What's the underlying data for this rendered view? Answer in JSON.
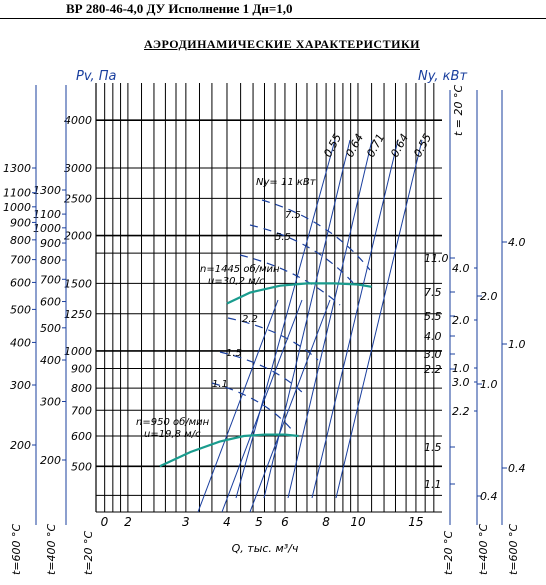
{
  "header": {
    "model": "ВР 280-46-4,0 ДУ Исполнение 1 Дн=1,0"
  },
  "title": "АЭРОДИНАМИЧЕСКИЕ  ХАРАКТЕРИСТИКИ",
  "colors": {
    "grid": "#000000",
    "blue_lines": "#1a3f9e",
    "curves": "#1a9c8e"
  },
  "chart_data": {
    "type": "line",
    "title": "АЭРОДИНАМИЧЕСКИЕ  ХАРАКТЕРИСТИКИ",
    "ylabel_left": "Pv, Па",
    "ylabel_right": "Ny, кВт",
    "xlabel": "Q, тыс. м³/ч",
    "x_scale": "log",
    "y_scale": "log",
    "xlim": [
      1,
      18
    ],
    "ylim": [
      380,
      5000
    ],
    "x_ticks": [
      "0",
      "2",
      "3",
      "4",
      "5",
      "6",
      "8",
      "10",
      "15"
    ],
    "y_ticks_main": [
      "4000",
      "3000",
      "2500",
      "2000",
      "1500",
      "1250",
      "1000",
      "900",
      "800",
      "700",
      "600",
      "500"
    ],
    "y_ticks_scale_1300": [
      "1300",
      "1100",
      "1000",
      "900",
      "800",
      "700",
      "600",
      "500",
      "400",
      "300",
      "200"
    ],
    "y_ticks_scale_1300b": [
      "1300",
      "1100",
      "1000",
      "900",
      "800",
      "700",
      "600",
      "500",
      "400",
      "300",
      "200"
    ],
    "n_ticks_inner": [
      "11.0",
      "7.5",
      "5.5",
      "4.0",
      "3.0",
      "2.2",
      "1.5",
      "1.1"
    ],
    "n_ticks_inner_b": [
      "4.0",
      "3.0",
      "2.2",
      "1.5",
      "1.1",
      "1.0",
      "2.0"
    ],
    "n_ticks_right": [
      "4.0",
      "2.0",
      "1.0",
      "1.0",
      "0.4"
    ],
    "n_ticks_mid": [
      "4.0",
      "2.0",
      "1.0",
      "0.4"
    ],
    "axis_temps_left": [
      "t=600 °C",
      "t=400 °C",
      "t=20 °C"
    ],
    "axis_temps_right": [
      "t=20 °C",
      "t=400 °C",
      "t=600 °C"
    ],
    "axis_temp_top": "t = 20 °C",
    "efficiency_labels": [
      "0.55",
      "0.64",
      "0.71",
      "0.64",
      "0.55"
    ],
    "motor_power_labels": [
      "Ny= 11 кВт",
      "7.5",
      "5.5",
      "2.2",
      "1.5",
      "1.1"
    ],
    "series": [
      {
        "name": "n=1445 об/мин, u=30,2 м/с",
        "label_lines": [
          "n=1445 об/мин",
          "u=30,2 м/с"
        ],
        "x": [
          4.0,
          4.7,
          5.8,
          7.0,
          8.5,
          10.0,
          11.0
        ],
        "y": [
          1330,
          1420,
          1480,
          1500,
          1500,
          1490,
          1470
        ]
      },
      {
        "name": "n=950 об/мин, u=19,8 м/с",
        "label_lines": [
          "n=950 об/мин",
          "u=19,8 м/с"
        ],
        "x": [
          2.5,
          3.1,
          3.8,
          4.5,
          5.2,
          6.0,
          6.6
        ],
        "y": [
          500,
          545,
          580,
          600,
          605,
          605,
          600
        ]
      }
    ]
  }
}
